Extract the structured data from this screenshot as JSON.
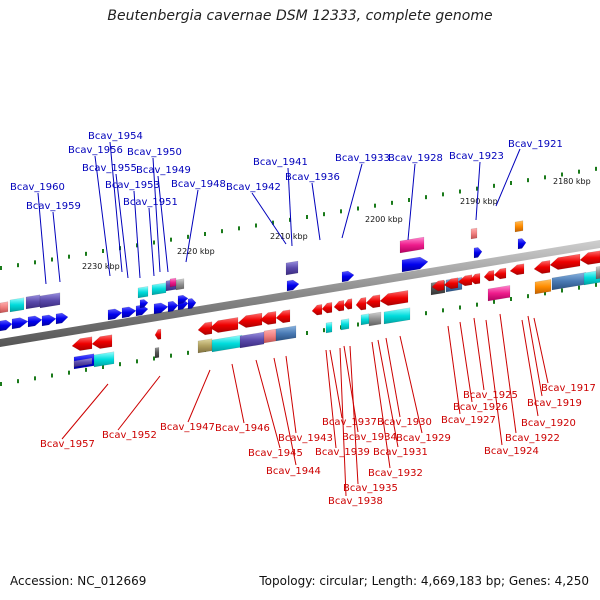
{
  "title": "Beutenbergia cavernae DSM 12333, complete genome",
  "footer": {
    "accession": "Accession: NC_012669",
    "topology": "Topology: circular; Length: 4,669,183 bp; Genes: 4,250"
  },
  "scale": [
    "2180 kbp",
    "2190 kbp",
    "2200 kbp",
    "2210 kbp",
    "2220 kbp",
    "2230 kbp"
  ],
  "genes_top": [
    "Bcav_1921",
    "Bcav_1923",
    "Bcav_1928",
    "Bcav_1933",
    "Bcav_1936",
    "Bcav_1941",
    "Bcav_1942",
    "Bcav_1948",
    "Bcav_1949",
    "Bcav_1950",
    "Bcav_1951",
    "Bcav_1953",
    "Bcav_1954",
    "Bcav_1955",
    "Bcav_1956",
    "Bcav_1959",
    "Bcav_1960"
  ],
  "genes_bottom": [
    "Bcav_1917",
    "Bcav_1919",
    "Bcav_1920",
    "Bcav_1922",
    "Bcav_1924",
    "Bcav_1925",
    "Bcav_1926",
    "Bcav_1927",
    "Bcav_1929",
    "Bcav_1930",
    "Bcav_1931",
    "Bcav_1932",
    "Bcav_1934",
    "Bcav_1935",
    "Bcav_1937",
    "Bcav_1938",
    "Bcav_1939",
    "Bcav_1943",
    "Bcav_1944",
    "Bcav_1945",
    "Bcav_1946",
    "Bcav_1947",
    "Bcav_1952",
    "Bcav_1957"
  ],
  "colors": {
    "forward": "#0000dd",
    "reverse": "#dd0000",
    "backbone": "#8a8a8a",
    "tick": "#1a7a1a"
  }
}
